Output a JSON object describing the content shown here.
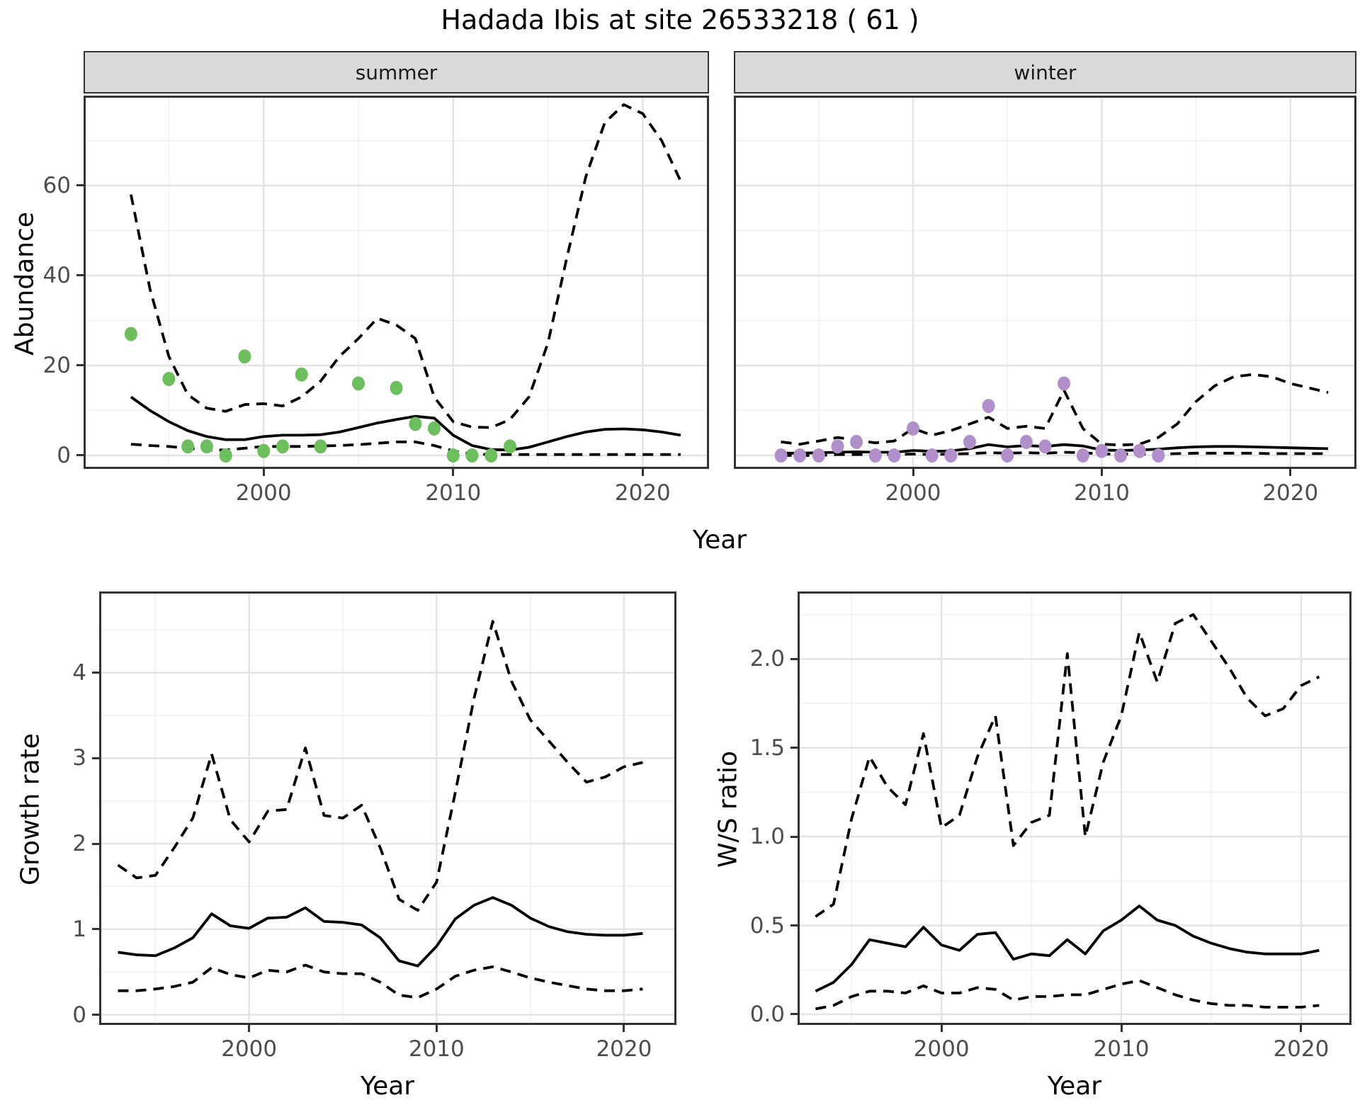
{
  "title": "Hadada Ibis at site 26533218 ( 61 )",
  "colors": {
    "summer_point": "#6dbe5d",
    "winter_point": "#b18fcb",
    "line": "#000000",
    "strip_bg": "#d9d9d9",
    "grid_major": "#e3e3e3",
    "grid_minor": "#f1f1f1",
    "panel_border": "#333333",
    "tick_text": "#4d4d4d"
  },
  "chart_data": [
    {
      "id": "abundance-summer",
      "type": "line",
      "facet_label": "summer",
      "title": "Hadada Ibis at site 26533218 ( 61 )",
      "xlabel": "Year",
      "ylabel": "Abundance",
      "xlim": [
        1990.5,
        2023.5
      ],
      "ylim": [
        -3,
        80
      ],
      "x_ticks": [
        2000,
        2010,
        2020
      ],
      "x_tick_labels": [
        "2000",
        "2010",
        "2020"
      ],
      "x_minor": [
        1995,
        2005,
        2015
      ],
      "y_ticks": [
        0,
        20,
        40,
        60
      ],
      "y_tick_labels": [
        "0",
        "20",
        "40",
        "60"
      ],
      "y_minor": [
        10,
        30,
        50,
        70
      ],
      "show_y_tick_labels": true,
      "legend": "none",
      "grid": true,
      "point_color": "#6dbe5d",
      "points": {
        "x": [
          1993,
          1995,
          1996,
          1997,
          1998,
          1999,
          2000,
          2001,
          2002,
          2003,
          2005,
          2007,
          2008,
          2009,
          2010,
          2011,
          2012,
          2013
        ],
        "y": [
          27,
          17,
          2,
          2,
          0,
          22,
          1,
          2,
          18,
          2,
          16,
          15,
          7,
          6,
          0,
          0,
          0,
          2
        ]
      },
      "x": [
        1993,
        1994,
        1995,
        1996,
        1997,
        1998,
        1999,
        2000,
        2001,
        2002,
        2003,
        2004,
        2005,
        2006,
        2007,
        2008,
        2009,
        2010,
        2011,
        2012,
        2013,
        2014,
        2015,
        2016,
        2017,
        2018,
        2019,
        2020,
        2021,
        2022
      ],
      "series": [
        {
          "name": "estimate",
          "style": "solid",
          "y": [
            13,
            10,
            7.5,
            5.5,
            4.2,
            3.5,
            3.5,
            4.2,
            4.5,
            4.5,
            4.6,
            5.2,
            6.2,
            7.2,
            8,
            8.7,
            8.3,
            4.5,
            2.2,
            1.3,
            1.2,
            1.8,
            3,
            4.2,
            5.2,
            5.8,
            5.9,
            5.7,
            5.2,
            4.5
          ]
        },
        {
          "name": "upper-ci",
          "style": "dashed",
          "y": [
            58,
            37,
            22,
            13.5,
            10.5,
            9.8,
            11.3,
            11.5,
            11,
            13,
            16.5,
            22,
            26,
            30.5,
            29,
            26,
            13,
            7.5,
            6.3,
            6.2,
            8,
            13,
            25,
            44,
            62,
            74,
            78,
            76,
            70,
            61
          ]
        },
        {
          "name": "lower-ci",
          "style": "dashed",
          "y": [
            2.5,
            2.2,
            2,
            1.6,
            1.2,
            1.2,
            1.6,
            2,
            2,
            2,
            2.1,
            2.2,
            2.4,
            2.7,
            3,
            3,
            2.2,
            1,
            0.3,
            0.2,
            0.2,
            0.2,
            0.2,
            0.2,
            0.2,
            0.2,
            0.2,
            0.2,
            0.2,
            0.2
          ]
        }
      ]
    },
    {
      "id": "abundance-winter",
      "type": "line",
      "facet_label": "winter",
      "xlabel": "Year",
      "ylabel": "Abundance",
      "xlim": [
        1990.5,
        2023.5
      ],
      "ylim": [
        -3,
        80
      ],
      "x_ticks": [
        2000,
        2010,
        2020
      ],
      "x_tick_labels": [
        "2000",
        "2010",
        "2020"
      ],
      "x_minor": [
        1995,
        2005,
        2015
      ],
      "y_ticks": [
        0,
        20,
        40,
        60
      ],
      "y_tick_labels": [
        "0",
        "20",
        "40",
        "60"
      ],
      "y_minor": [
        10,
        30,
        50,
        70
      ],
      "show_y_tick_labels": false,
      "legend": "none",
      "grid": true,
      "point_color": "#b18fcb",
      "points": {
        "x": [
          1993,
          1994,
          1995,
          1996,
          1997,
          1998,
          1999,
          2000,
          2001,
          2002,
          2003,
          2004,
          2005,
          2006,
          2007,
          2008,
          2009,
          2010,
          2011,
          2012,
          2013
        ],
        "y": [
          0,
          0,
          0,
          2,
          3,
          0,
          0,
          6,
          0,
          0,
          3,
          11,
          0,
          3,
          2,
          16,
          0,
          1,
          0,
          1,
          0
        ]
      },
      "x": [
        1993,
        1994,
        1995,
        1996,
        1997,
        1998,
        1999,
        2000,
        2001,
        2002,
        2003,
        2004,
        2005,
        2006,
        2007,
        2008,
        2009,
        2010,
        2011,
        2012,
        2013,
        2014,
        2015,
        2016,
        2017,
        2018,
        2019,
        2020,
        2021,
        2022
      ],
      "series": [
        {
          "name": "estimate",
          "style": "solid",
          "y": [
            0.5,
            0.5,
            0.6,
            0.7,
            0.8,
            0.7,
            0.7,
            1.1,
            0.9,
            1.0,
            1.5,
            2.4,
            1.9,
            2.2,
            2.0,
            2.4,
            2.1,
            1.2,
            1.1,
            1.2,
            1.4,
            1.7,
            1.9,
            2.0,
            2.0,
            1.9,
            1.8,
            1.7,
            1.6,
            1.5
          ]
        },
        {
          "name": "upper-ci",
          "style": "dashed",
          "y": [
            3,
            2.5,
            3.2,
            4,
            3.4,
            2.8,
            3.2,
            6,
            4.5,
            5.5,
            7,
            8.5,
            6,
            6.5,
            6,
            14.5,
            6,
            2.5,
            2.3,
            2.5,
            4,
            7,
            12,
            15.5,
            17.5,
            18,
            17.5,
            16,
            15,
            14
          ]
        },
        {
          "name": "lower-ci",
          "style": "dashed",
          "y": [
            0,
            0,
            0,
            0.2,
            0.2,
            0.2,
            0.2,
            0.3,
            0.2,
            0.3,
            0.4,
            0.6,
            0.5,
            0.6,
            0.5,
            0.7,
            0.6,
            0.3,
            0.3,
            0.3,
            0.3,
            0.4,
            0.5,
            0.5,
            0.5,
            0.5,
            0.4,
            0.4,
            0.4,
            0.4
          ]
        }
      ]
    },
    {
      "id": "growth-rate",
      "type": "line",
      "facet_label": "",
      "xlabel": "Year",
      "ylabel": "Growth rate",
      "xlim": [
        1992,
        2022.8
      ],
      "ylim": [
        -0.12,
        4.95
      ],
      "x_ticks": [
        2000,
        2010,
        2020
      ],
      "x_tick_labels": [
        "2000",
        "2010",
        "2020"
      ],
      "x_minor": [
        1995,
        2005,
        2015
      ],
      "y_ticks": [
        0,
        1,
        2,
        3,
        4
      ],
      "y_tick_labels": [
        "0",
        "1",
        "2",
        "3",
        "4"
      ],
      "y_minor": [
        0.5,
        1.5,
        2.5,
        3.5,
        4.5
      ],
      "show_y_tick_labels": true,
      "legend": "none",
      "grid": true,
      "point_color": null,
      "points": null,
      "x": [
        1993,
        1994,
        1995,
        1996,
        1997,
        1998,
        1999,
        2000,
        2001,
        2002,
        2003,
        2004,
        2005,
        2006,
        2007,
        2008,
        2009,
        2010,
        2011,
        2012,
        2013,
        2014,
        2015,
        2016,
        2017,
        2018,
        2019,
        2020,
        2021
      ],
      "series": [
        {
          "name": "estimate",
          "style": "solid",
          "y": [
            0.73,
            0.7,
            0.69,
            0.78,
            0.9,
            1.18,
            1.04,
            1.01,
            1.13,
            1.14,
            1.25,
            1.09,
            1.08,
            1.05,
            0.9,
            0.63,
            0.57,
            0.8,
            1.12,
            1.28,
            1.37,
            1.28,
            1.13,
            1.03,
            0.97,
            0.94,
            0.93,
            0.93,
            0.95
          ]
        },
        {
          "name": "upper-ci",
          "style": "dashed",
          "y": [
            1.75,
            1.6,
            1.63,
            1.95,
            2.3,
            3.05,
            2.28,
            2.02,
            2.38,
            2.4,
            3.12,
            2.33,
            2.3,
            2.45,
            1.95,
            1.35,
            1.22,
            1.55,
            2.6,
            3.7,
            4.6,
            3.9,
            3.45,
            3.2,
            2.95,
            2.72,
            2.78,
            2.9,
            2.95
          ]
        },
        {
          "name": "lower-ci",
          "style": "dashed",
          "y": [
            0.28,
            0.28,
            0.3,
            0.33,
            0.38,
            0.55,
            0.47,
            0.43,
            0.52,
            0.5,
            0.58,
            0.5,
            0.48,
            0.48,
            0.38,
            0.23,
            0.2,
            0.3,
            0.45,
            0.52,
            0.56,
            0.5,
            0.43,
            0.38,
            0.34,
            0.3,
            0.28,
            0.28,
            0.3
          ]
        }
      ]
    },
    {
      "id": "ws-ratio",
      "type": "line",
      "facet_label": "",
      "xlabel": "Year",
      "ylabel": "W/S ratio",
      "xlim": [
        1992,
        2022.8
      ],
      "ylim": [
        -0.06,
        2.38
      ],
      "x_ticks": [
        2000,
        2010,
        2020
      ],
      "x_tick_labels": [
        "2000",
        "2010",
        "2020"
      ],
      "x_minor": [
        1995,
        2005,
        2015
      ],
      "y_ticks": [
        0,
        0.5,
        1,
        1.5,
        2
      ],
      "y_tick_labels": [
        "0.0",
        "0.5",
        "1.0",
        "1.5",
        "2.0"
      ],
      "y_minor": [
        0.25,
        0.75,
        1.25,
        1.75,
        2.25
      ],
      "show_y_tick_labels": true,
      "legend": "none",
      "grid": true,
      "point_color": null,
      "points": null,
      "x": [
        1993,
        1994,
        1995,
        1996,
        1997,
        1998,
        1999,
        2000,
        2001,
        2002,
        2003,
        2004,
        2005,
        2006,
        2007,
        2008,
        2009,
        2010,
        2011,
        2012,
        2013,
        2014,
        2015,
        2016,
        2017,
        2018,
        2019,
        2020,
        2021
      ],
      "series": [
        {
          "name": "estimate",
          "style": "solid",
          "y": [
            0.13,
            0.18,
            0.28,
            0.42,
            0.4,
            0.38,
            0.49,
            0.39,
            0.36,
            0.45,
            0.46,
            0.31,
            0.34,
            0.33,
            0.42,
            0.34,
            0.47,
            0.53,
            0.61,
            0.53,
            0.5,
            0.44,
            0.4,
            0.37,
            0.35,
            0.34,
            0.34,
            0.34,
            0.36
          ]
        },
        {
          "name": "upper-ci",
          "style": "dashed",
          "y": [
            0.55,
            0.62,
            1.1,
            1.45,
            1.28,
            1.18,
            1.58,
            1.05,
            1.12,
            1.45,
            1.68,
            0.95,
            1.08,
            1.12,
            2.03,
            1.0,
            1.42,
            1.68,
            2.15,
            1.87,
            2.2,
            2.25,
            2.1,
            1.95,
            1.78,
            1.68,
            1.72,
            1.85,
            1.9
          ]
        },
        {
          "name": "lower-ci",
          "style": "dashed",
          "y": [
            0.03,
            0.05,
            0.1,
            0.13,
            0.13,
            0.12,
            0.16,
            0.12,
            0.12,
            0.15,
            0.14,
            0.08,
            0.1,
            0.1,
            0.11,
            0.11,
            0.14,
            0.17,
            0.19,
            0.15,
            0.11,
            0.08,
            0.06,
            0.05,
            0.05,
            0.04,
            0.04,
            0.04,
            0.05
          ]
        }
      ]
    }
  ]
}
